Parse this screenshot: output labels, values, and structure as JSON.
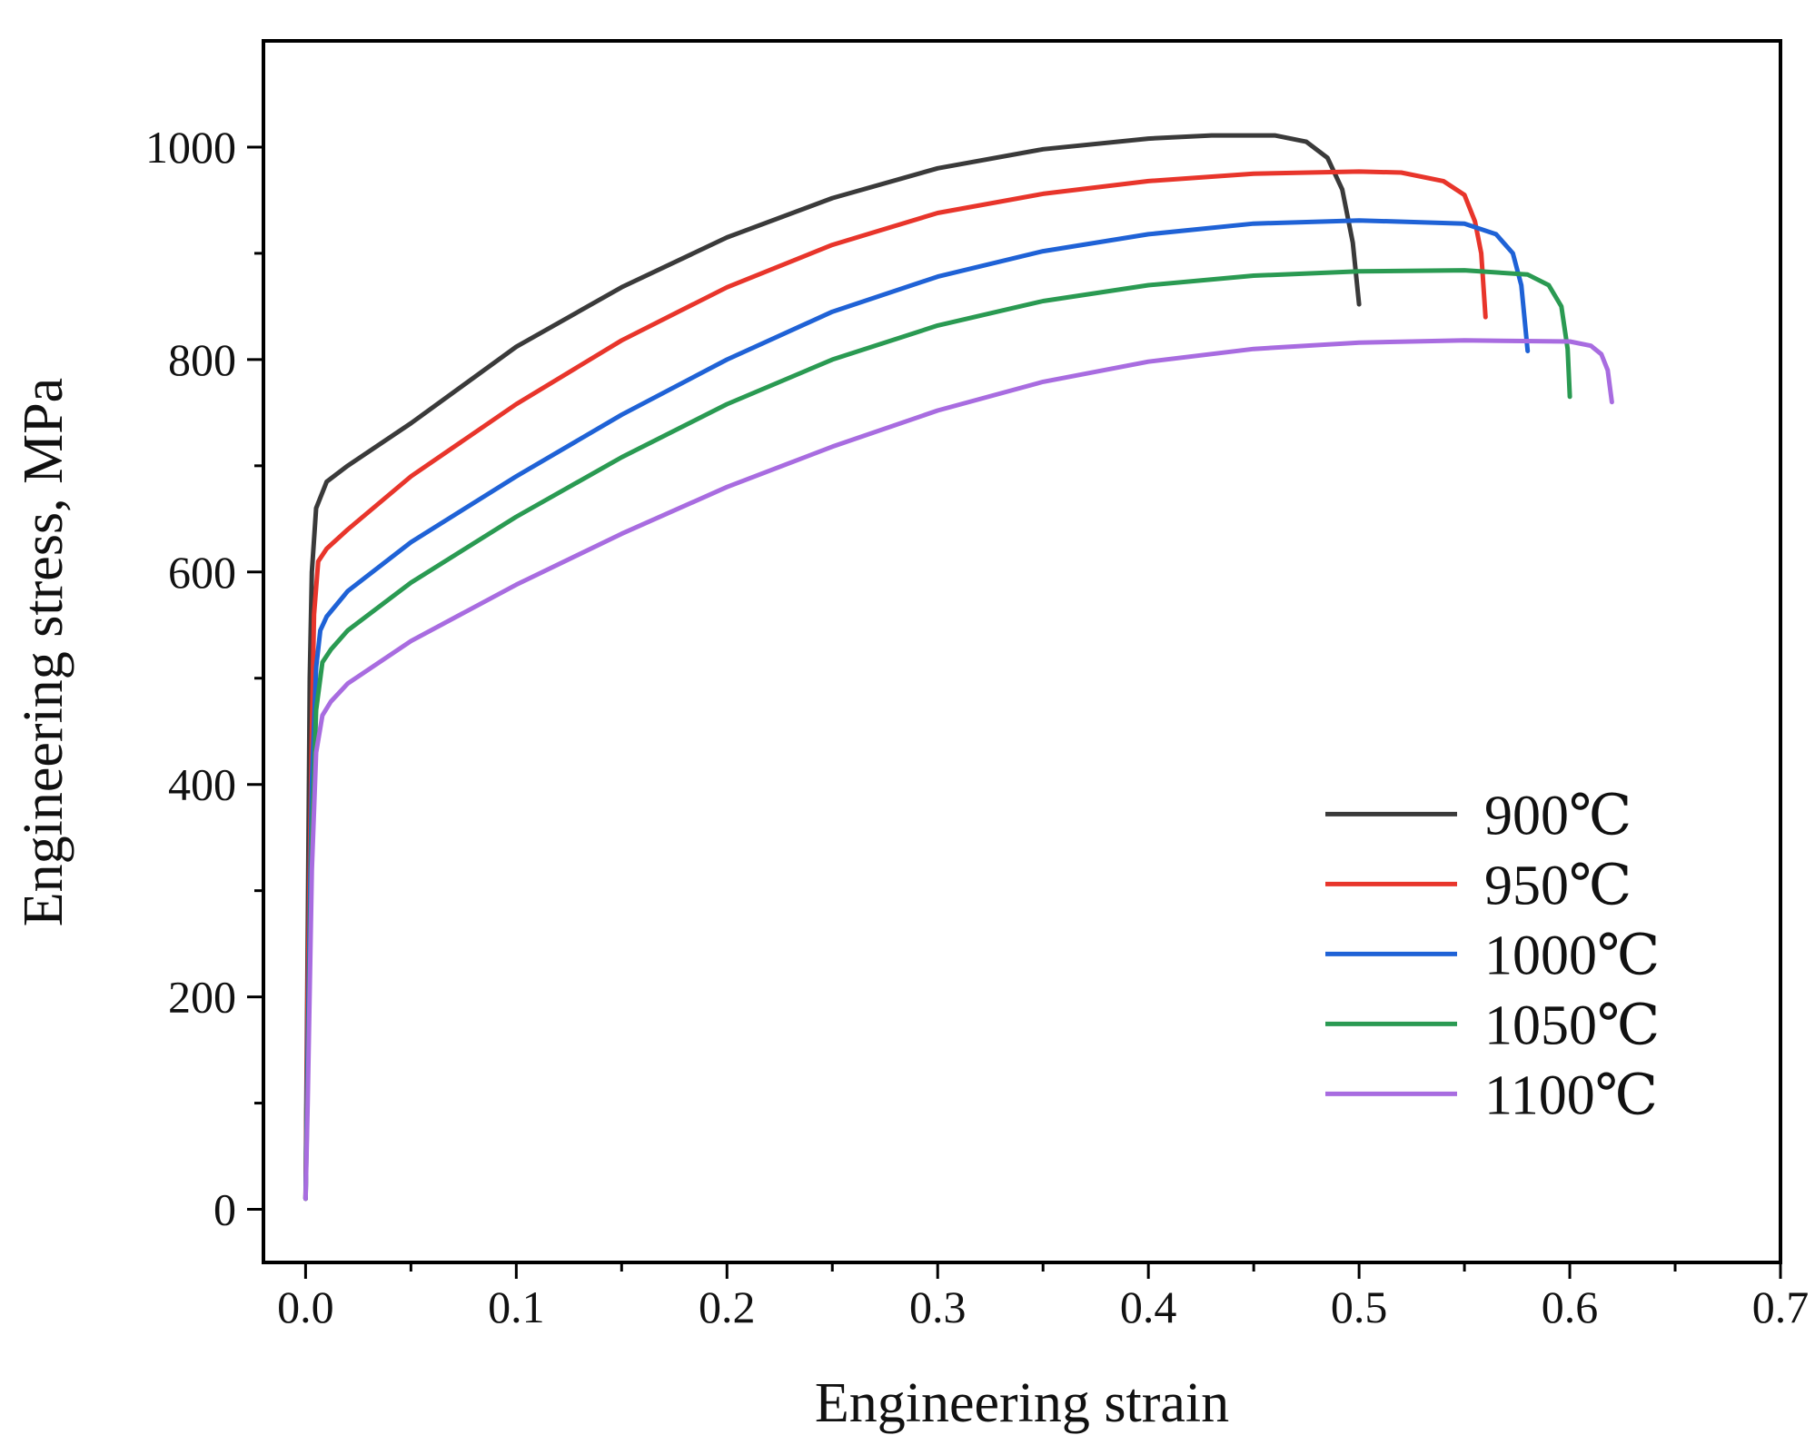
{
  "chart_data": {
    "type": "line",
    "title": "",
    "xlabel": "Engineering strain",
    "ylabel": "Engineering stress, MPa",
    "xlim": [
      -0.02,
      0.7
    ],
    "ylim": [
      -50,
      1100
    ],
    "x_ticks": [
      0.0,
      0.1,
      0.2,
      0.3,
      0.4,
      0.5,
      0.6,
      0.7
    ],
    "x_tick_labels": [
      "0.0",
      "0.1",
      "0.2",
      "0.3",
      "0.4",
      "0.5",
      "0.6",
      "0.7"
    ],
    "x_minor_ticks": [
      0.05,
      0.15,
      0.25,
      0.35,
      0.45,
      0.55,
      0.65
    ],
    "y_ticks": [
      0,
      200,
      400,
      600,
      800,
      1000
    ],
    "y_tick_labels": [
      "0",
      "200",
      "400",
      "600",
      "800",
      "1000"
    ],
    "y_minor_ticks": [
      100,
      300,
      500,
      700,
      900
    ],
    "grid": false,
    "legend_position": "bottom-right",
    "series": [
      {
        "name": "900℃",
        "color": "#3a3a3a",
        "points": [
          [
            0,
            10
          ],
          [
            0.001,
            250
          ],
          [
            0.002,
            500
          ],
          [
            0.003,
            600
          ],
          [
            0.005,
            660
          ],
          [
            0.01,
            685
          ],
          [
            0.02,
            700
          ],
          [
            0.05,
            740
          ],
          [
            0.1,
            812
          ],
          [
            0.15,
            868
          ],
          [
            0.2,
            915
          ],
          [
            0.25,
            952
          ],
          [
            0.3,
            980
          ],
          [
            0.35,
            998
          ],
          [
            0.4,
            1008
          ],
          [
            0.43,
            1011
          ],
          [
            0.46,
            1011
          ],
          [
            0.475,
            1005
          ],
          [
            0.485,
            990
          ],
          [
            0.492,
            960
          ],
          [
            0.497,
            910
          ],
          [
            0.5,
            852
          ]
        ]
      },
      {
        "name": "950℃",
        "color": "#e8352b",
        "points": [
          [
            0,
            10
          ],
          [
            0.001,
            200
          ],
          [
            0.003,
            450
          ],
          [
            0.004,
            560
          ],
          [
            0.006,
            610
          ],
          [
            0.01,
            622
          ],
          [
            0.02,
            640
          ],
          [
            0.05,
            690
          ],
          [
            0.1,
            758
          ],
          [
            0.15,
            818
          ],
          [
            0.2,
            868
          ],
          [
            0.25,
            908
          ],
          [
            0.3,
            938
          ],
          [
            0.35,
            956
          ],
          [
            0.4,
            968
          ],
          [
            0.45,
            975
          ],
          [
            0.5,
            977
          ],
          [
            0.52,
            976
          ],
          [
            0.54,
            968
          ],
          [
            0.55,
            955
          ],
          [
            0.555,
            930
          ],
          [
            0.558,
            900
          ],
          [
            0.56,
            840
          ]
        ]
      },
      {
        "name": "1000℃",
        "color": "#1f62d6",
        "points": [
          [
            0,
            10
          ],
          [
            0.001,
            150
          ],
          [
            0.003,
            400
          ],
          [
            0.005,
            510
          ],
          [
            0.007,
            545
          ],
          [
            0.01,
            558
          ],
          [
            0.02,
            582
          ],
          [
            0.05,
            628
          ],
          [
            0.1,
            690
          ],
          [
            0.15,
            748
          ],
          [
            0.2,
            800
          ],
          [
            0.25,
            845
          ],
          [
            0.3,
            878
          ],
          [
            0.35,
            902
          ],
          [
            0.4,
            918
          ],
          [
            0.45,
            928
          ],
          [
            0.5,
            931
          ],
          [
            0.55,
            928
          ],
          [
            0.565,
            918
          ],
          [
            0.573,
            900
          ],
          [
            0.577,
            870
          ],
          [
            0.58,
            808
          ]
        ]
      },
      {
        "name": "1050℃",
        "color": "#2a9a52",
        "points": [
          [
            0,
            10
          ],
          [
            0.001,
            120
          ],
          [
            0.003,
            350
          ],
          [
            0.005,
            470
          ],
          [
            0.008,
            515
          ],
          [
            0.012,
            527
          ],
          [
            0.02,
            545
          ],
          [
            0.05,
            590
          ],
          [
            0.1,
            652
          ],
          [
            0.15,
            708
          ],
          [
            0.2,
            758
          ],
          [
            0.25,
            800
          ],
          [
            0.3,
            832
          ],
          [
            0.35,
            855
          ],
          [
            0.4,
            870
          ],
          [
            0.45,
            879
          ],
          [
            0.5,
            883
          ],
          [
            0.55,
            884
          ],
          [
            0.58,
            880
          ],
          [
            0.59,
            870
          ],
          [
            0.596,
            850
          ],
          [
            0.599,
            810
          ],
          [
            0.6,
            765
          ]
        ]
      },
      {
        "name": "1100℃",
        "color": "#a86ce0",
        "points": [
          [
            0,
            10
          ],
          [
            0.001,
            100
          ],
          [
            0.003,
            320
          ],
          [
            0.005,
            430
          ],
          [
            0.008,
            465
          ],
          [
            0.012,
            478
          ],
          [
            0.02,
            495
          ],
          [
            0.05,
            535
          ],
          [
            0.1,
            588
          ],
          [
            0.15,
            636
          ],
          [
            0.2,
            680
          ],
          [
            0.25,
            718
          ],
          [
            0.3,
            752
          ],
          [
            0.35,
            779
          ],
          [
            0.4,
            798
          ],
          [
            0.45,
            810
          ],
          [
            0.5,
            816
          ],
          [
            0.55,
            818
          ],
          [
            0.6,
            817
          ],
          [
            0.61,
            813
          ],
          [
            0.615,
            805
          ],
          [
            0.618,
            790
          ],
          [
            0.62,
            760
          ]
        ]
      }
    ]
  }
}
